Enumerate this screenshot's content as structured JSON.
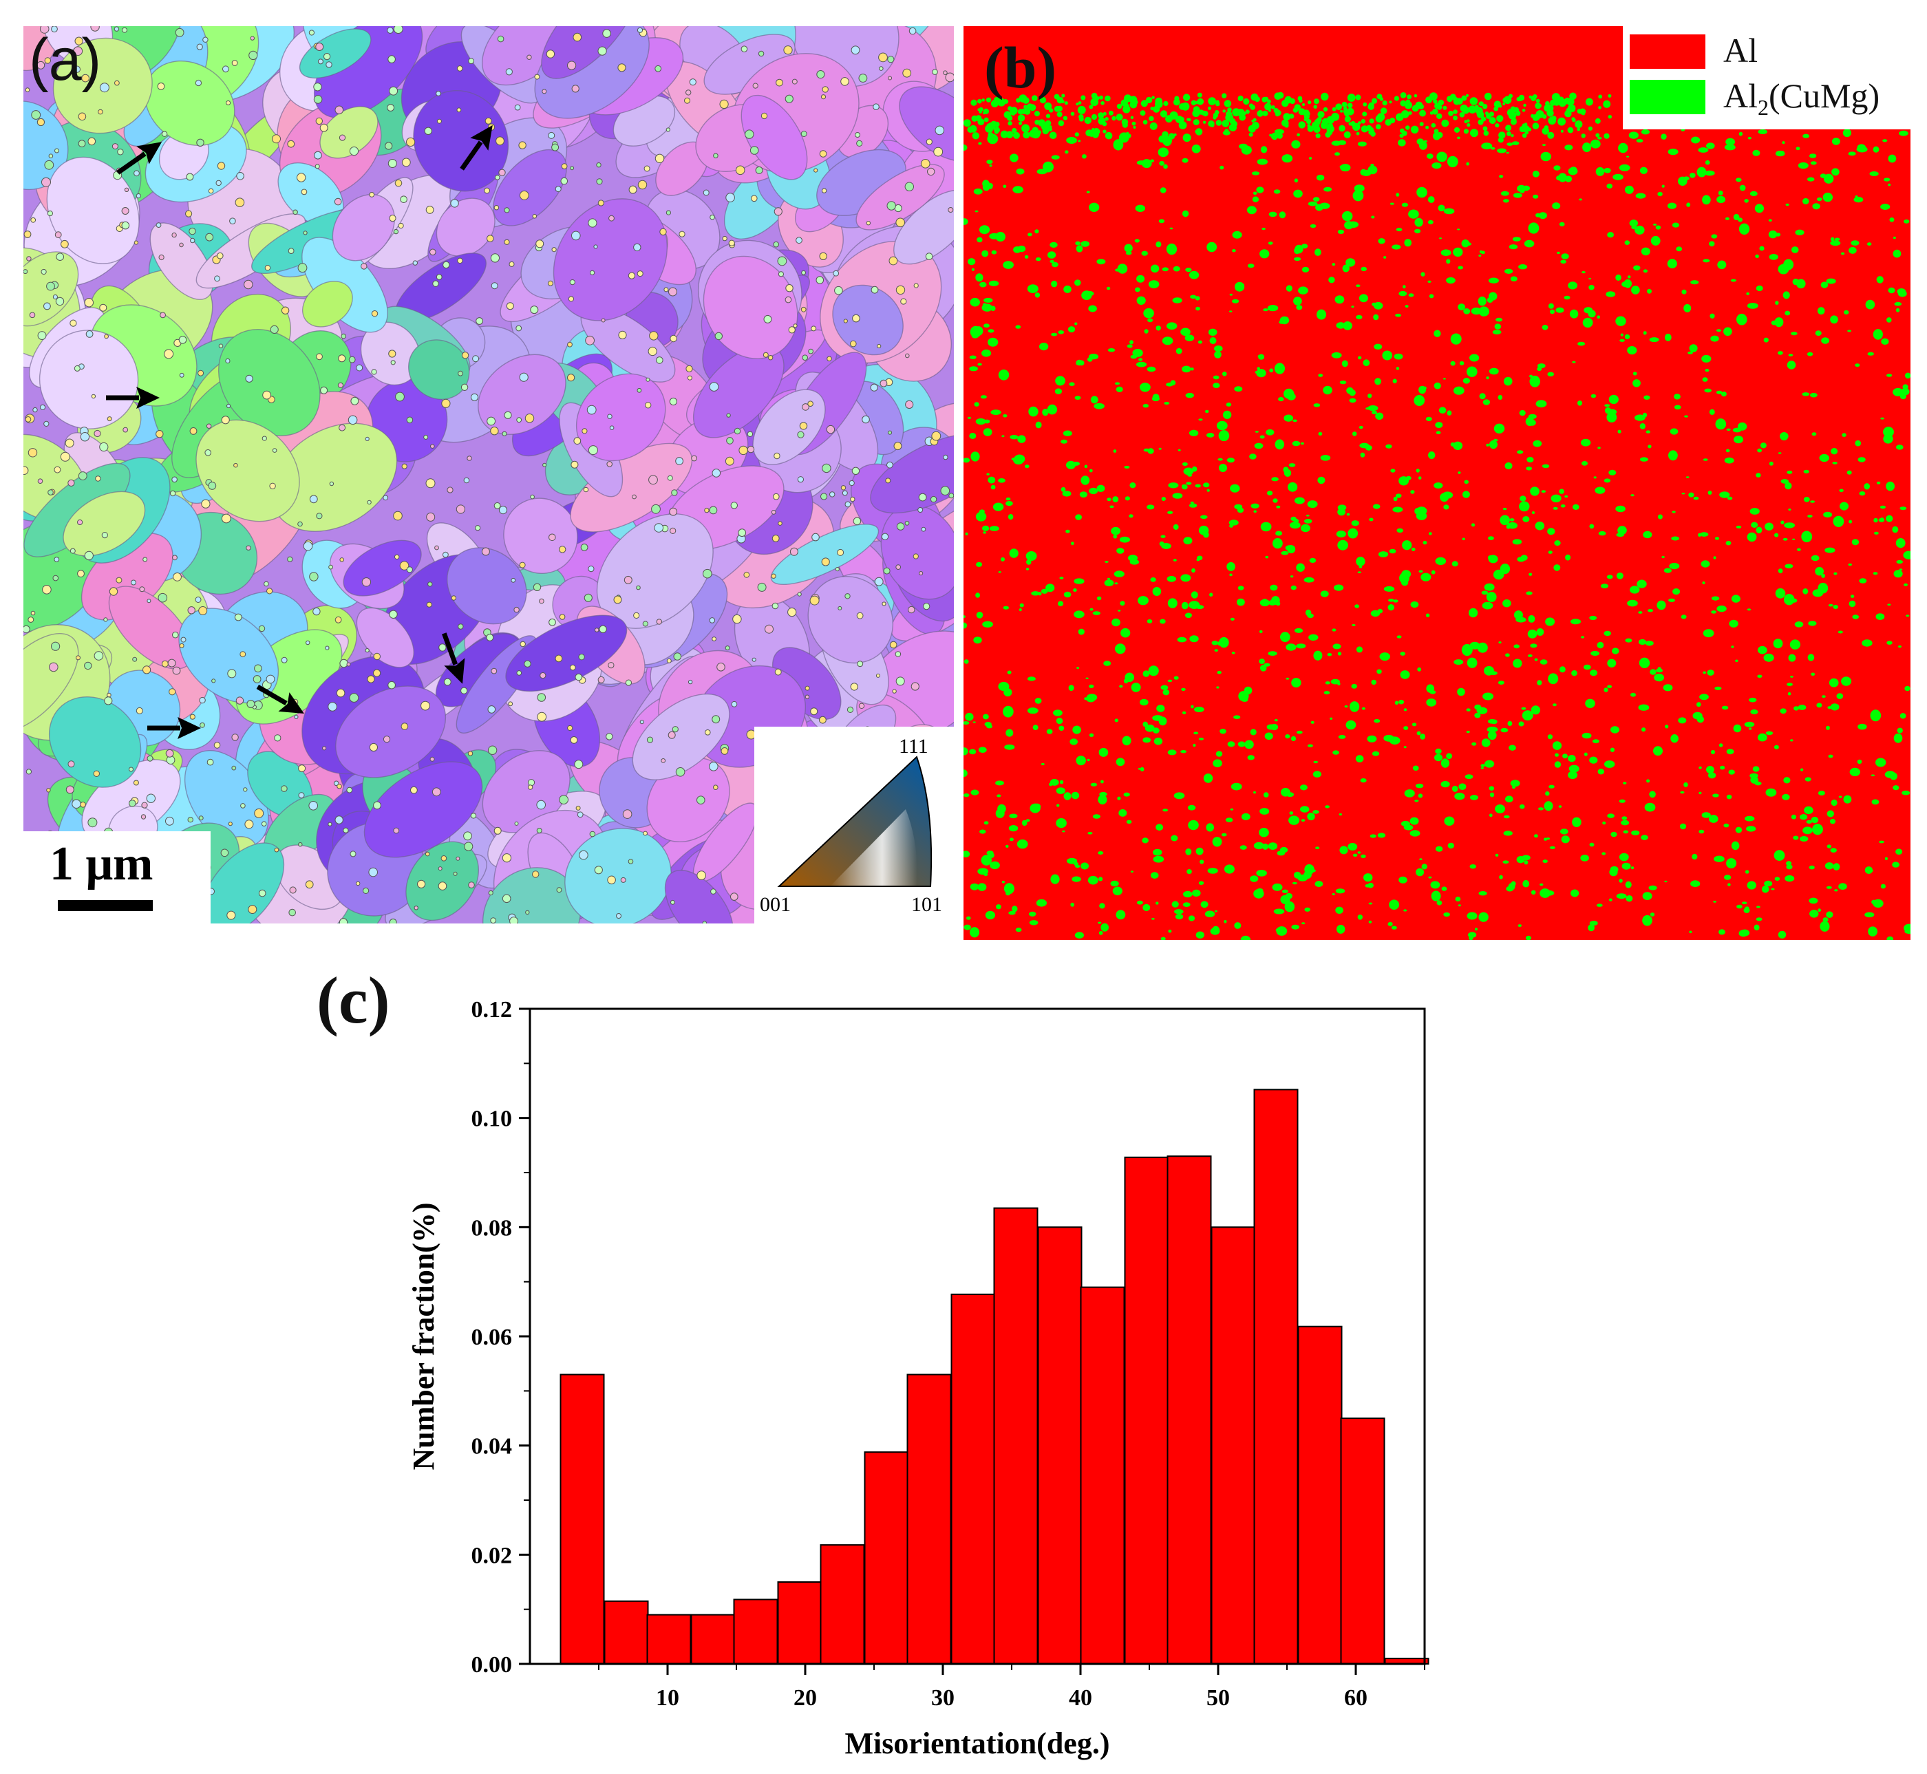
{
  "panel_a": {
    "letter": "(a)",
    "scale_bar_label": "1 μm",
    "ipf_key": {
      "top": "111",
      "left": "001",
      "right": "101"
    },
    "arrow_count": 6
  },
  "panel_b": {
    "letter": "(b)",
    "legend": [
      {
        "label": "Al",
        "color": "#ff0000"
      },
      {
        "label": "Al",
        "sub": "2",
        "suffix": "(CuMg)",
        "color": "#00ff00"
      }
    ]
  },
  "panel_c": {
    "letter": "(c)"
  },
  "chart_data": {
    "type": "bar",
    "xlabel": "Misorientation(deg.)",
    "ylabel": "Number fraction(%)",
    "xlim": [
      0,
      65
    ],
    "ylim": [
      0.0,
      0.12
    ],
    "xticks": [
      "10",
      "20",
      "30",
      "40",
      "50",
      "60"
    ],
    "xtick_values": [
      10,
      20,
      30,
      40,
      50,
      60
    ],
    "yticks": [
      "0.00",
      "0.02",
      "0.04",
      "0.06",
      "0.08",
      "0.10",
      "0.12"
    ],
    "ytick_values": [
      0.0,
      0.02,
      0.04,
      0.06,
      0.08,
      0.1,
      0.12
    ],
    "bar_color": "#ff0000",
    "bin_width": 3.15,
    "x": [
      3.8,
      7.0,
      10.1,
      13.3,
      16.4,
      19.6,
      22.7,
      25.9,
      29.0,
      32.2,
      35.3,
      38.5,
      41.6,
      44.8,
      47.9,
      51.1,
      54.2,
      57.4,
      60.5,
      63.7
    ],
    "values": [
      0.053,
      0.0115,
      0.009,
      0.009,
      0.0118,
      0.015,
      0.0218,
      0.0388,
      0.053,
      0.0677,
      0.0835,
      0.08,
      0.069,
      0.0928,
      0.093,
      0.08,
      0.1052,
      0.0618,
      0.045,
      0.001
    ]
  },
  "colors": {
    "phase_al": "#ff0000",
    "phase_s": "#00ff00",
    "arrow": "#000000"
  }
}
